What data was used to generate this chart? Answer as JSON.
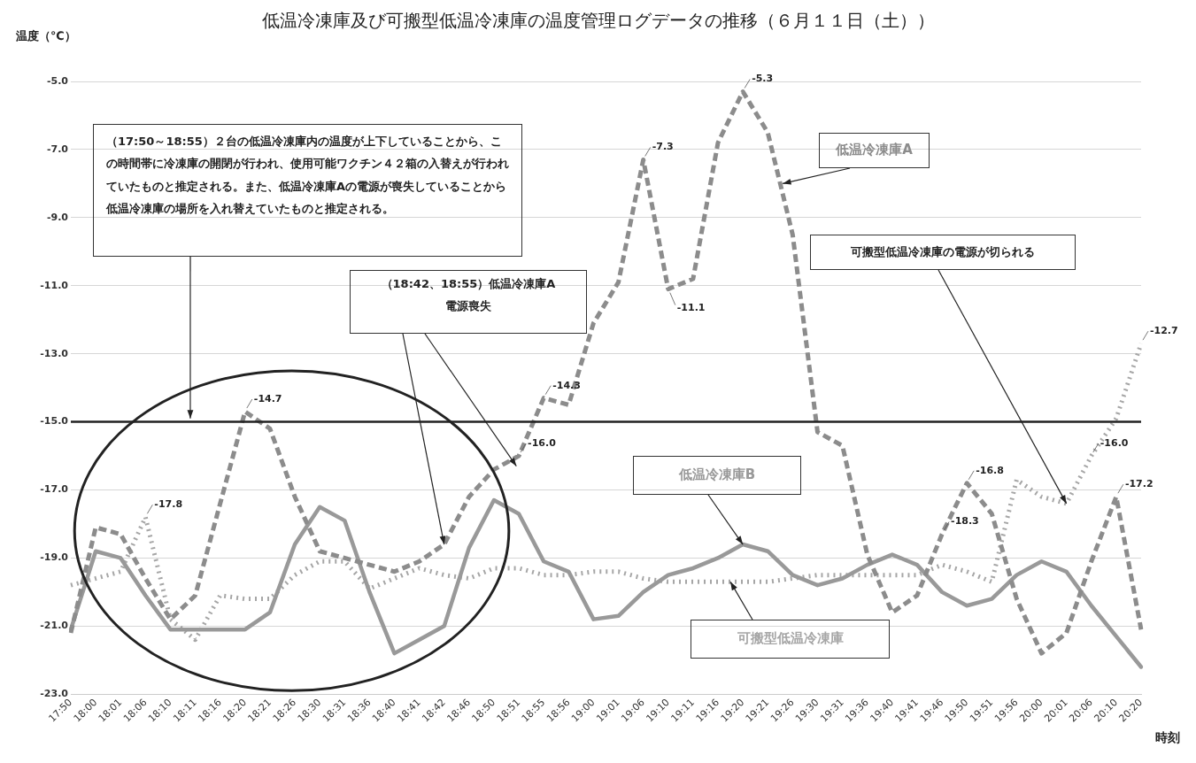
{
  "chart_data": {
    "type": "line",
    "title": "低温冷凍庫及び可搬型低温冷凍庫の温度管理ログデータの推移（６月１１日（土））",
    "xlabel": "時刻",
    "ylabel": "温度（℃）",
    "categories": [
      "17:50",
      "18:00",
      "18:01",
      "18:06",
      "18:10",
      "18:11",
      "18:16",
      "18:20",
      "18:21",
      "18:26",
      "18:30",
      "18:31",
      "18:36",
      "18:40",
      "18:41",
      "18:42",
      "18:46",
      "18:50",
      "18:51",
      "18:55",
      "18:56",
      "19:00",
      "19:01",
      "19:06",
      "19:10",
      "19:11",
      "19:16",
      "19:20",
      "19:21",
      "19:26",
      "19:30",
      "19:31",
      "19:36",
      "19:40",
      "19:41",
      "19:46",
      "19:50",
      "19:51",
      "19:56",
      "20:00",
      "20:01",
      "20:06",
      "20:10",
      "20:20"
    ],
    "series": [
      {
        "name": "低温冷凍庫A",
        "color": "#8c8c8c",
        "line_style": "dashed",
        "values": [
          -21.2,
          -18.1,
          -18.3,
          -19.6,
          -20.8,
          -20.1,
          -17.4,
          -14.7,
          -15.2,
          -17.2,
          -18.8,
          -19.0,
          -19.2,
          -19.4,
          -19.1,
          -18.6,
          -17.2,
          -16.4,
          -16.0,
          -14.3,
          -14.5,
          -12.1,
          -10.9,
          -7.3,
          -11.1,
          -10.8,
          -6.8,
          -5.3,
          -6.5,
          -9.5,
          -15.3,
          -15.7,
          -18.9,
          -20.6,
          -20.1,
          -18.3,
          -16.8,
          -17.7,
          -20.2,
          -21.8,
          -21.2,
          -19.1,
          -17.2,
          -21.1
        ],
        "value_labels": [
          null,
          null,
          null,
          null,
          null,
          null,
          null,
          "-14.7",
          null,
          null,
          null,
          null,
          null,
          null,
          null,
          null,
          null,
          null,
          "-16.0",
          "-14.3",
          null,
          null,
          null,
          "-7.3",
          "-11.1",
          null,
          null,
          "-5.3",
          null,
          null,
          null,
          null,
          null,
          null,
          null,
          "-18.3",
          "-16.8",
          null,
          null,
          null,
          null,
          null,
          "-17.2",
          null
        ]
      },
      {
        "name": "低温冷凍庫B",
        "color": "#999999",
        "line_style": "solid",
        "values": [
          -21.1,
          -18.8,
          -19.0,
          -20.1,
          -21.1,
          -21.1,
          -21.1,
          -21.1,
          -20.6,
          -18.6,
          -17.5,
          -17.9,
          -20.0,
          -21.8,
          -21.4,
          -21.0,
          -18.7,
          -17.3,
          -17.7,
          -19.1,
          -19.4,
          -20.8,
          -20.7,
          -20.0,
          -19.5,
          -19.3,
          -19.0,
          -18.6,
          -18.8,
          -19.5,
          -19.8,
          -19.6,
          -19.2,
          -18.9,
          -19.2,
          -20.0,
          -20.4,
          -20.2,
          -19.5,
          -19.1,
          -19.4,
          -20.4,
          -21.3,
          -22.2
        ]
      },
      {
        "name": "可搬型低温冷凍庫",
        "color": "#a6a6a6",
        "line_style": "dotted",
        "values": [
          -19.8,
          -19.6,
          -19.4,
          -17.8,
          -20.8,
          -21.4,
          -20.1,
          -20.2,
          -20.2,
          -19.5,
          -19.1,
          -19.1,
          -19.9,
          -19.6,
          -19.3,
          -19.5,
          -19.6,
          -19.3,
          -19.3,
          -19.5,
          -19.5,
          -19.4,
          -19.4,
          -19.6,
          -19.7,
          -19.7,
          -19.7,
          -19.7,
          -19.7,
          -19.6,
          -19.5,
          -19.5,
          -19.5,
          -19.5,
          -19.5,
          -19.2,
          -19.4,
          -19.7,
          -16.7,
          -17.2,
          -17.4,
          -16.0,
          -14.9,
          -12.7
        ],
        "value_labels": [
          null,
          null,
          null,
          "-17.8",
          null,
          null,
          null,
          null,
          null,
          null,
          null,
          null,
          null,
          null,
          null,
          null,
          null,
          null,
          null,
          null,
          null,
          null,
          null,
          null,
          null,
          null,
          null,
          null,
          null,
          null,
          null,
          null,
          null,
          null,
          null,
          null,
          null,
          null,
          null,
          null,
          null,
          "-16.0",
          null,
          "-12.7"
        ]
      }
    ],
    "ylim": [
      -23,
      -5
    ],
    "yticks": [
      {
        "value": -23,
        "label": "-23.0"
      },
      {
        "value": -21,
        "label": "-21.0"
      },
      {
        "value": -19,
        "label": "-19.0"
      },
      {
        "value": -17,
        "label": "-17.0"
      },
      {
        "value": -15,
        "label": "-15.0"
      },
      {
        "value": -13,
        "label": "-13.0"
      },
      {
        "value": -11,
        "label": "-11.0"
      },
      {
        "value": -9,
        "label": "-9.0"
      },
      {
        "value": -7,
        "label": "-7.0"
      },
      {
        "value": -5,
        "label": "-5.0"
      }
    ],
    "grid": "y",
    "legend": false,
    "marker": "none",
    "ref_lines": [
      {
        "axis": "y",
        "value": -15,
        "color": "#222222",
        "line_style": "solid"
      }
    ],
    "annotations": [
      "（17:50～18:55）２台の低温冷凍庫内の温度が上下していることから、この時間帯に冷凍庫の開閉が行われ、使用可能ワクチン４２箱の入替えが行われていたものと推定される。また、低温冷凍庫Aの電源が喪失していることから低温冷凍庫の場所を入れ替えていたものと推定される。",
      "（18:42、18:55）低温冷凍庫A\n電源喪失",
      {
        "text": "可搬型低温冷凍庫の電源が切られる",
        "x": "20:01",
        "y": -17.4
      }
    ]
  }
}
